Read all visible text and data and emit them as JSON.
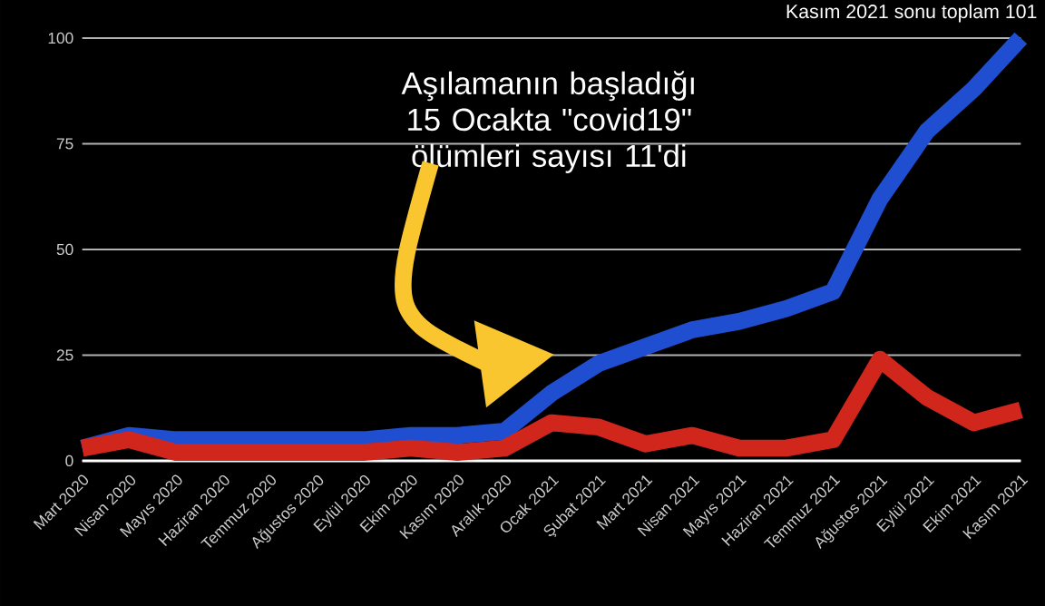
{
  "chart_data": {
    "type": "line",
    "categories": [
      "Mart 2020",
      "Nisan 2020",
      "Mayıs 2020",
      "Haziran 2020",
      "Temmuz 2020",
      "Ağustos 2020",
      "Eylül 2020",
      "Ekim 2020",
      "Kasım 2020",
      "Aralık 2020",
      "Ocak 2021",
      "Şubat 2021",
      "Mart 2021",
      "Nisan 2021",
      "Mayıs 2021",
      "Haziran 2021",
      "Temmuz 2021",
      "Ağustos 2021",
      "Eylül 2021",
      "Ekim 2021",
      "Kasım 2021"
    ],
    "series": [
      {
        "color": "#1f4fd0",
        "values": [
          3,
          6,
          5,
          5,
          5,
          5,
          5,
          6,
          6,
          7,
          16,
          23,
          27,
          31,
          33,
          36,
          40,
          62,
          78,
          88,
          100
        ]
      },
      {
        "color": "#d0261c",
        "values": [
          3,
          5,
          2,
          2,
          2,
          2,
          2,
          3,
          2,
          3,
          9,
          8,
          4,
          6,
          3,
          3,
          5,
          24,
          15,
          9,
          12
        ]
      }
    ],
    "ylim": [
      0,
      100
    ],
    "yticks": [
      0,
      25,
      50,
      75,
      100
    ],
    "grid": "y",
    "annotations": [
      "Kasım 2021 sonu toplam 101",
      "Aşılamanın başladığı 15 Ocakta \"covid19\" ölümleri sayısı 11'di"
    ]
  }
}
